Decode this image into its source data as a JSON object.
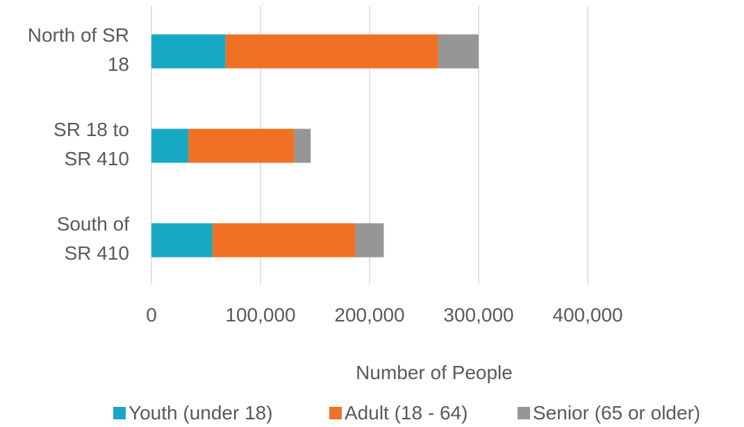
{
  "chart_data": {
    "type": "bar",
    "orientation": "horizontal",
    "stacked": true,
    "categories": [
      [
        "North of SR",
        "18"
      ],
      [
        "SR 18 to",
        "SR 410"
      ],
      [
        "South of",
        "SR 410"
      ]
    ],
    "series": [
      {
        "name": "Youth (under 18)",
        "color": "#17A9C4",
        "values": [
          68000,
          34000,
          56000
        ]
      },
      {
        "name": "Adult (18 - 64)",
        "color": "#F07126",
        "values": [
          195000,
          97000,
          131000
        ]
      },
      {
        "name": "Senior (65 or older)",
        "color": "#969696",
        "values": [
          37000,
          15000,
          26000
        ]
      }
    ],
    "xlabel": "Number of People",
    "xlim": [
      0,
      400000
    ],
    "xticks": [
      0,
      100000,
      200000,
      300000,
      400000
    ],
    "xtick_labels": [
      "0",
      "100,000",
      "200,000",
      "300,000",
      "400,000"
    ],
    "grid": true,
    "legend_position": "bottom"
  }
}
